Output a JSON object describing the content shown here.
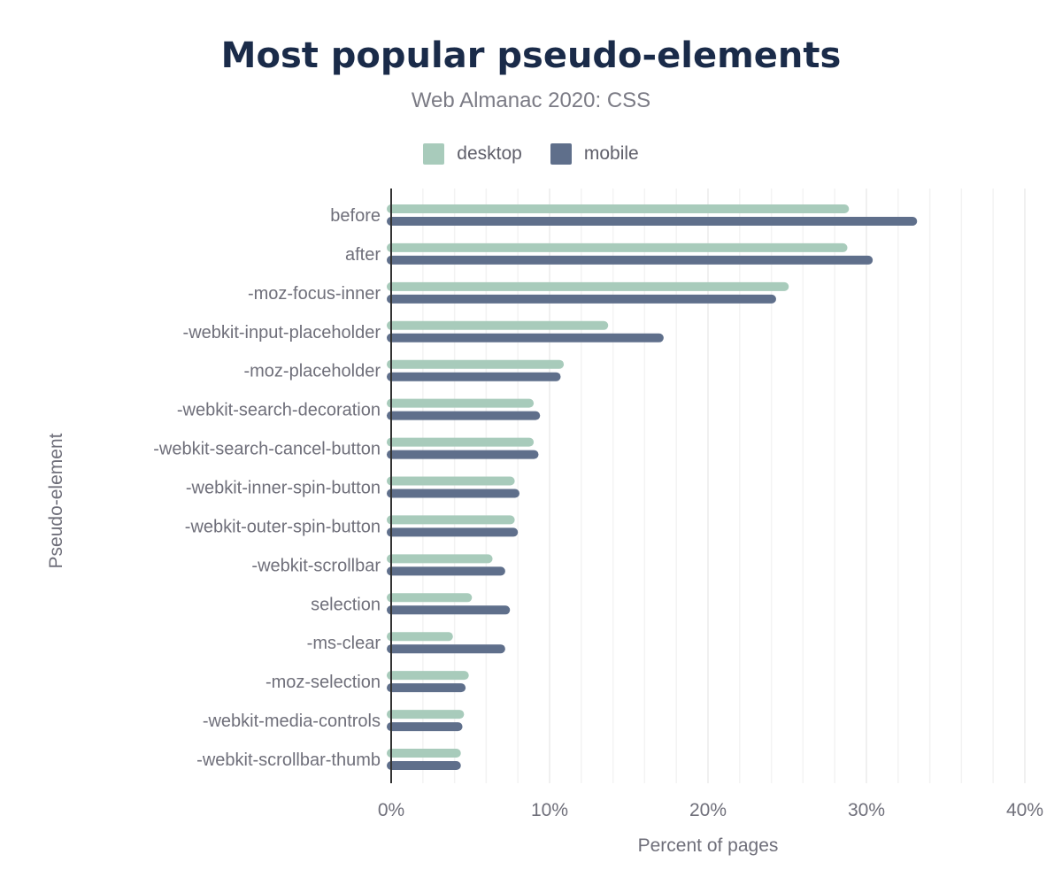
{
  "chart_data": {
    "type": "bar",
    "orientation": "horizontal",
    "title": "Most popular pseudo-elements",
    "subtitle": "Web Almanac 2020: CSS",
    "xlabel": "Percent of pages",
    "ylabel": "Pseudo-element",
    "xlim": [
      0,
      40
    ],
    "xticks": [
      "0%",
      "10%",
      "20%",
      "30%",
      "40%"
    ],
    "grid": true,
    "legend": "top",
    "categories": [
      "before",
      "after",
      "-moz-focus-inner",
      "-webkit-input-placeholder",
      "-moz-placeholder",
      "-webkit-search-decoration",
      "-webkit-search-cancel-button",
      "-webkit-inner-spin-button",
      "-webkit-outer-spin-button",
      "-webkit-scrollbar",
      "selection",
      "-ms-clear",
      "-moz-selection",
      "-webkit-media-controls",
      "-webkit-scrollbar-thumb"
    ],
    "series": [
      {
        "name": "desktop",
        "color": "#a8cbbb",
        "values": [
          28.9,
          28.8,
          25.1,
          13.7,
          10.9,
          9.0,
          9.0,
          7.8,
          7.8,
          6.4,
          5.1,
          3.9,
          4.9,
          4.6,
          4.4
        ]
      },
      {
        "name": "mobile",
        "color": "#5f6f8b",
        "values": [
          33.2,
          30.4,
          24.3,
          17.2,
          10.7,
          9.4,
          9.3,
          8.1,
          8.0,
          7.2,
          7.5,
          7.2,
          4.7,
          4.5,
          4.4
        ]
      }
    ]
  }
}
